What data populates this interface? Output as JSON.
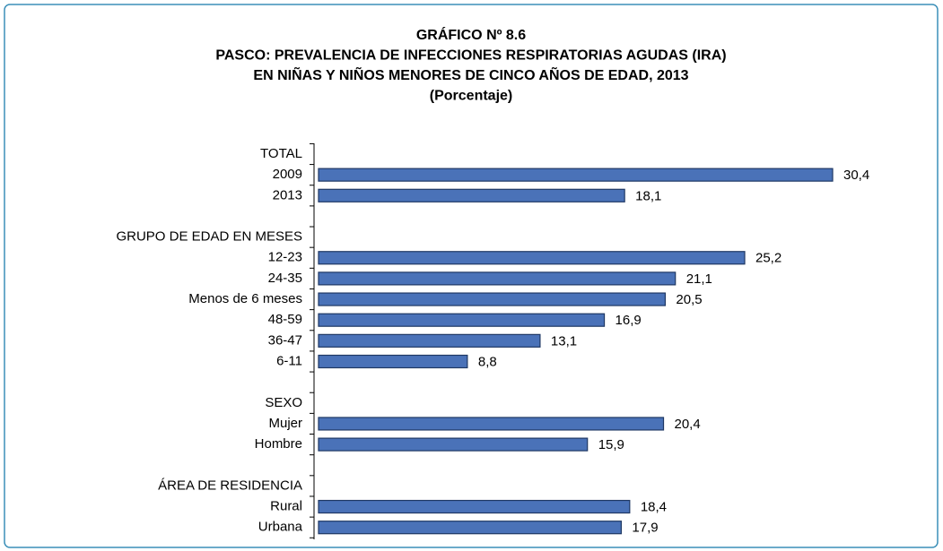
{
  "chart_data": {
    "type": "bar",
    "orientation": "horizontal",
    "title": [
      "GRÁFICO Nº 8.6",
      "PASCO: PREVALENCIA DE INFECCIONES RESPIRATORIAS AGUDAS (IRA)",
      "EN NIÑAS Y NIÑOS MENORES DE CINCO AÑOS DE EDAD, 2013",
      "(Porcentaje)"
    ],
    "categories": [
      "TOTAL",
      "2009",
      "2013",
      null,
      "GRUPO DE EDAD EN MESES",
      "12-23",
      "24-35",
      "Menos de 6 meses",
      "48-59",
      "36-47",
      "6-11",
      null,
      "SEXO",
      "Mujer",
      "Hombre",
      null,
      "ÁREA DE RESIDENCIA",
      "Rural",
      "Urbana"
    ],
    "values": [
      null,
      30.4,
      18.1,
      null,
      null,
      25.2,
      21.1,
      20.5,
      16.9,
      13.1,
      8.8,
      null,
      null,
      20.4,
      15.9,
      null,
      null,
      18.4,
      17.9
    ],
    "value_labels": [
      null,
      "30,4",
      "18,1",
      null,
      null,
      "25,2",
      "21,1",
      "20,5",
      "16,9",
      "13,1",
      "8,8",
      null,
      null,
      "20,4",
      "15,9",
      null,
      null,
      "18,4",
      "17,9"
    ],
    "color": "#4a72b8"
  }
}
